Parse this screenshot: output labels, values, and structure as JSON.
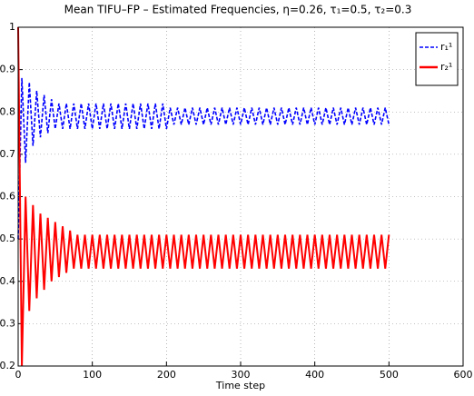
{
  "chart_data": {
    "type": "line",
    "title": "Mean TIFU–FP – Estimated Frequencies, η=0.26, τ₁=0.5, τ₂=0.3",
    "x_label": "Time step",
    "x": [
      0,
      5,
      10,
      15,
      20,
      25,
      30,
      35,
      40,
      45,
      50,
      55,
      60,
      65,
      70,
      75,
      80,
      85,
      90,
      95,
      100,
      105,
      110,
      115,
      120,
      125,
      130,
      135,
      140,
      145,
      150,
      155,
      160,
      165,
      170,
      175,
      180,
      185,
      190,
      195,
      200,
      205,
      210,
      215,
      220,
      225,
      230,
      235,
      240,
      245,
      250,
      255,
      260,
      265,
      270,
      275,
      280,
      285,
      290,
      295,
      300,
      305,
      310,
      315,
      320,
      325,
      330,
      335,
      340,
      345,
      350,
      355,
      360,
      365,
      370,
      375,
      380,
      385,
      390,
      395,
      400,
      405,
      410,
      415,
      420,
      425,
      430,
      435,
      440,
      445,
      450,
      455,
      460,
      465,
      470,
      475,
      480,
      485,
      490,
      495,
      500
    ],
    "series": [
      {
        "name": "r₁¹",
        "color": "#0000ff",
        "dashed": true,
        "values": [
          0.5,
          0.88,
          0.68,
          0.87,
          0.72,
          0.85,
          0.74,
          0.84,
          0.75,
          0.83,
          0.76,
          0.82,
          0.76,
          0.82,
          0.76,
          0.82,
          0.76,
          0.82,
          0.76,
          0.82,
          0.76,
          0.82,
          0.76,
          0.82,
          0.76,
          0.82,
          0.76,
          0.82,
          0.76,
          0.82,
          0.76,
          0.82,
          0.76,
          0.82,
          0.76,
          0.82,
          0.76,
          0.82,
          0.76,
          0.82,
          0.76,
          0.81,
          0.77,
          0.81,
          0.77,
          0.81,
          0.77,
          0.81,
          0.77,
          0.81,
          0.77,
          0.81,
          0.77,
          0.81,
          0.77,
          0.81,
          0.77,
          0.81,
          0.77,
          0.81,
          0.77,
          0.81,
          0.77,
          0.81,
          0.77,
          0.81,
          0.77,
          0.81,
          0.77,
          0.81,
          0.77,
          0.81,
          0.77,
          0.81,
          0.77,
          0.81,
          0.77,
          0.81,
          0.77,
          0.81,
          0.77,
          0.81,
          0.77,
          0.81,
          0.77,
          0.81,
          0.77,
          0.81,
          0.77,
          0.81,
          0.77,
          0.81,
          0.77,
          0.81,
          0.77,
          0.81,
          0.77,
          0.81,
          0.77,
          0.81,
          0.77
        ]
      },
      {
        "name": "r₂¹",
        "color": "#ff0000",
        "dashed": false,
        "values": [
          1,
          0.2,
          0.6,
          0.33,
          0.58,
          0.36,
          0.56,
          0.38,
          0.55,
          0.4,
          0.54,
          0.41,
          0.53,
          0.42,
          0.52,
          0.43,
          0.51,
          0.43,
          0.51,
          0.43,
          0.51,
          0.43,
          0.51,
          0.43,
          0.51,
          0.43,
          0.51,
          0.43,
          0.51,
          0.43,
          0.51,
          0.43,
          0.51,
          0.43,
          0.51,
          0.43,
          0.51,
          0.43,
          0.51,
          0.43,
          0.51,
          0.43,
          0.51,
          0.43,
          0.51,
          0.43,
          0.51,
          0.43,
          0.51,
          0.43,
          0.51,
          0.43,
          0.51,
          0.43,
          0.51,
          0.43,
          0.51,
          0.43,
          0.51,
          0.43,
          0.51,
          0.43,
          0.51,
          0.43,
          0.51,
          0.43,
          0.51,
          0.43,
          0.51,
          0.43,
          0.51,
          0.43,
          0.51,
          0.43,
          0.51,
          0.43,
          0.51,
          0.43,
          0.51,
          0.43,
          0.51,
          0.43,
          0.51,
          0.43,
          0.51,
          0.43,
          0.51,
          0.43,
          0.51,
          0.43,
          0.51,
          0.43,
          0.51,
          0.43,
          0.51,
          0.43,
          0.51,
          0.43,
          0.51,
          0.43,
          0.51
        ]
      }
    ],
    "xlim": [
      0,
      600
    ],
    "xticks": [
      0,
      100,
      200,
      300,
      400,
      500,
      600
    ],
    "ylim": [
      0.2,
      1
    ],
    "yticks": [
      0.2,
      0.3,
      0.4,
      0.5,
      0.6,
      0.7,
      0.8,
      0.9,
      1
    ],
    "grid": true,
    "legend": "top-right"
  }
}
